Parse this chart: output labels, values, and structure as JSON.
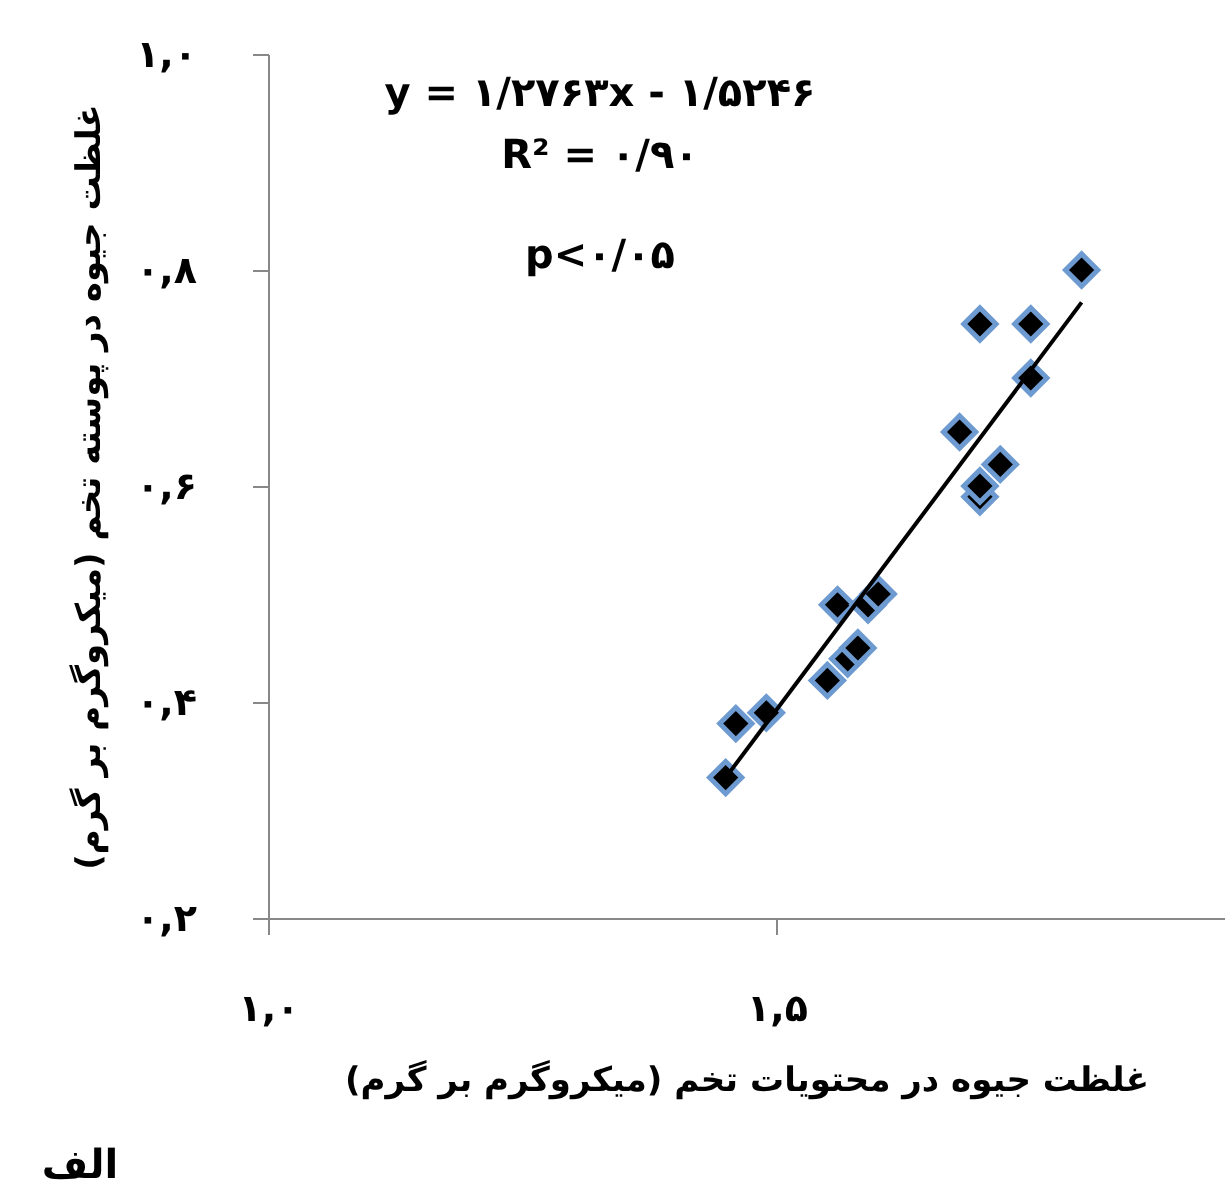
{
  "chart_data": {
    "type": "scatter",
    "xlabel": "غلظت جیوه در محتویات تخم (میکروگرم بر گرم)",
    "ylabel": "غلظت جیوه در پوسته تخم (میکروگرم بر گرم)",
    "annotations": [
      "y = ۱/۲۷۶۳x - ۱/۵۲۴۶",
      "R² = ۰/۹۰",
      "p<۰/۰۵",
      "الف"
    ],
    "series": [
      {
        "color": "#000000",
        "marker": "diamond",
        "x": [
          1.45,
          1.46,
          1.49,
          1.55,
          1.57,
          1.58,
          1.56,
          1.59,
          1.6,
          1.68,
          1.7,
          1.7,
          1.7,
          1.72,
          1.75,
          1.75,
          1.8
        ],
        "values": [
          0.33,
          0.38,
          0.39,
          0.42,
          0.44,
          0.45,
          0.49,
          0.49,
          0.5,
          0.65,
          0.59,
          0.6,
          0.75,
          0.62,
          0.7,
          0.75,
          0.8
        ]
      },
      {
        "type": "line",
        "color": "#000000",
        "marker": "none",
        "x": [
          1.45,
          1.8
        ],
        "values": [
          0.33,
          0.77
        ]
      }
    ],
    "xlim": [
      1.0,
      1.94
    ],
    "xticks": [
      {
        "value": 1.0,
        "label": "۱,۰"
      },
      {
        "value": 1.5,
        "label": "۱,۵"
      }
    ],
    "ylim": [
      0.2,
      1.0
    ],
    "yticks": [
      {
        "value": 0.2,
        "label": "۰,۲"
      },
      {
        "value": 0.4,
        "label": "۰,۴"
      },
      {
        "value": 0.6,
        "label": "۰,۶"
      },
      {
        "value": 0.8,
        "label": "۰,۸"
      },
      {
        "value": 1.0,
        "label": "۱,۰"
      }
    ]
  }
}
